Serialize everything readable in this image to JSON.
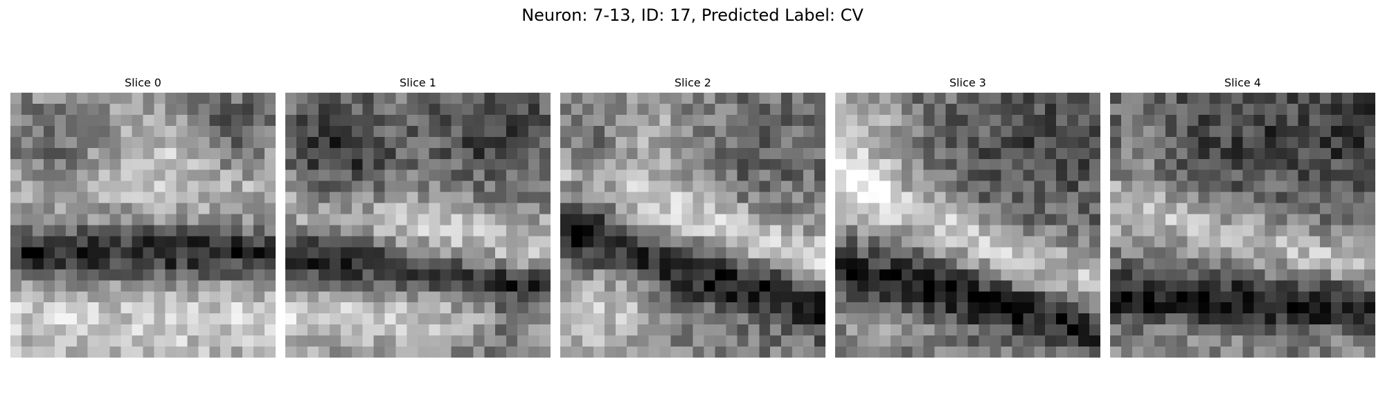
{
  "figure": {
    "title": "Neuron: 7-13, ID: 17, Predicted Label: CV"
  },
  "slices": [
    {
      "title": "Slice 0",
      "pattern": "upper-noisy-midband-dark-bottom-bright"
    },
    {
      "title": "Slice 1",
      "pattern": "dark-top-left-bright-ridge-dark-band-bottom-bright"
    },
    {
      "title": "Slice 2",
      "pattern": "noisy-top-bright-diagonal-dark-lower-band-bright-bottom-left"
    },
    {
      "title": "Slice 3",
      "pattern": "bright-left-top-bright-diagonal-dark-bottom-band"
    },
    {
      "title": "Slice 4",
      "pattern": "dark-top-bright-middle-band-dark-bottom-mixed"
    }
  ],
  "colormap": "gray"
}
